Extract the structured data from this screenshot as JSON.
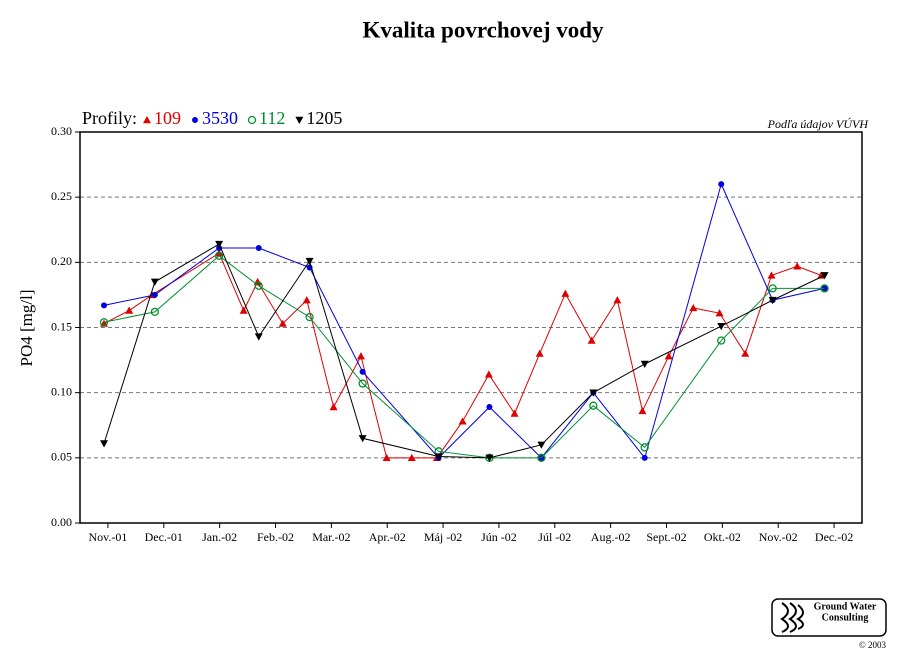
{
  "chart_data": {
    "type": "line",
    "title": "Kvalita povrchovej vody",
    "source_note": "Podľa údajov VÚVH",
    "legend_label": "Profily:",
    "y_label": "PO4 [mg/l]",
    "logo": {
      "line1": "Ground Water",
      "line2": "Consulting",
      "copyright": "© 2003"
    },
    "xlim": [
      -0.5,
      13.5
    ],
    "xticks": [
      {
        "value": 0,
        "label": "Nov.-01"
      },
      {
        "value": 1,
        "label": "Dec.-01"
      },
      {
        "value": 2,
        "label": "Jan.-02"
      },
      {
        "value": 3,
        "label": "Feb.-02"
      },
      {
        "value": 4,
        "label": "Mar.-02"
      },
      {
        "value": 5,
        "label": "Apr.-02"
      },
      {
        "value": 6,
        "label": "Máj -02"
      },
      {
        "value": 7,
        "label": "Jún -02"
      },
      {
        "value": 8,
        "label": "Júl -02"
      },
      {
        "value": 9,
        "label": "Aug.-02"
      },
      {
        "value": 10,
        "label": "Sept.-02"
      },
      {
        "value": 11,
        "label": "Okt.-02"
      },
      {
        "value": 12,
        "label": "Nov.-02"
      },
      {
        "value": 13,
        "label": "Dec.-02"
      }
    ],
    "ylim": [
      0,
      0.3
    ],
    "yticks": [
      {
        "value": 0,
        "label": "0.00"
      },
      {
        "value": 0.05,
        "label": "0.05"
      },
      {
        "value": 0.1,
        "label": "0.10"
      },
      {
        "value": 0.15,
        "label": "0.15"
      },
      {
        "value": 0.2,
        "label": "0.20"
      },
      {
        "value": 0.25,
        "label": "0.25"
      },
      {
        "value": 0.3,
        "label": "0.30"
      }
    ],
    "grid": true,
    "series": [
      {
        "name": "109",
        "color": "#e00000",
        "marker": "triangle-up",
        "x": [
          -0.07,
          0.38,
          0.79,
          1.99,
          2.43,
          2.68,
          3.13,
          3.56,
          4.04,
          4.53,
          4.99,
          5.44,
          5.89,
          6.35,
          6.82,
          7.28,
          7.73,
          8.19,
          8.66,
          9.12,
          9.57,
          10.04,
          10.48,
          10.95,
          11.41,
          11.88,
          12.34,
          12.77
        ],
        "values": [
          0.153,
          0.163,
          0.175,
          0.207,
          0.163,
          0.185,
          0.153,
          0.171,
          0.089,
          0.128,
          0.05,
          0.05,
          0.05,
          0.078,
          0.114,
          0.084,
          0.13,
          0.176,
          0.14,
          0.171,
          0.086,
          0.128,
          0.165,
          0.161,
          0.13,
          0.19,
          0.197,
          0.19
        ]
      },
      {
        "name": "3530",
        "color": "#0000e0",
        "marker": "circle",
        "x": [
          -0.07,
          0.84,
          1.99,
          2.7,
          3.61,
          4.56,
          5.92,
          6.83,
          7.76,
          8.69,
          9.61,
          10.98,
          11.9,
          12.83
        ],
        "values": [
          0.167,
          0.175,
          0.211,
          0.211,
          0.196,
          0.116,
          0.05,
          0.089,
          0.05,
          0.1,
          0.05,
          0.26,
          0.171,
          0.18
        ]
      },
      {
        "name": "112",
        "color": "#009030",
        "marker": "open-circle",
        "x": [
          -0.07,
          0.84,
          1.99,
          2.7,
          3.61,
          4.56,
          5.92,
          6.83,
          7.76,
          8.69,
          9.61,
          10.98,
          11.9,
          12.83
        ],
        "values": [
          0.154,
          0.162,
          0.205,
          0.182,
          0.158,
          0.107,
          0.055,
          0.05,
          0.05,
          0.09,
          0.058,
          0.14,
          0.18,
          0.18
        ]
      },
      {
        "name": "1205",
        "color": "#000000",
        "marker": "triangle-down",
        "x": [
          -0.07,
          0.84,
          1.99,
          2.7,
          3.61,
          4.56,
          5.92,
          6.83,
          7.76,
          8.69,
          9.61,
          10.98,
          11.9,
          12.83
        ],
        "values": [
          0.061,
          0.185,
          0.214,
          0.143,
          0.201,
          0.065,
          0.051,
          0.05,
          0.06,
          0.1,
          0.122,
          0.151,
          0.171,
          0.19
        ]
      }
    ]
  }
}
